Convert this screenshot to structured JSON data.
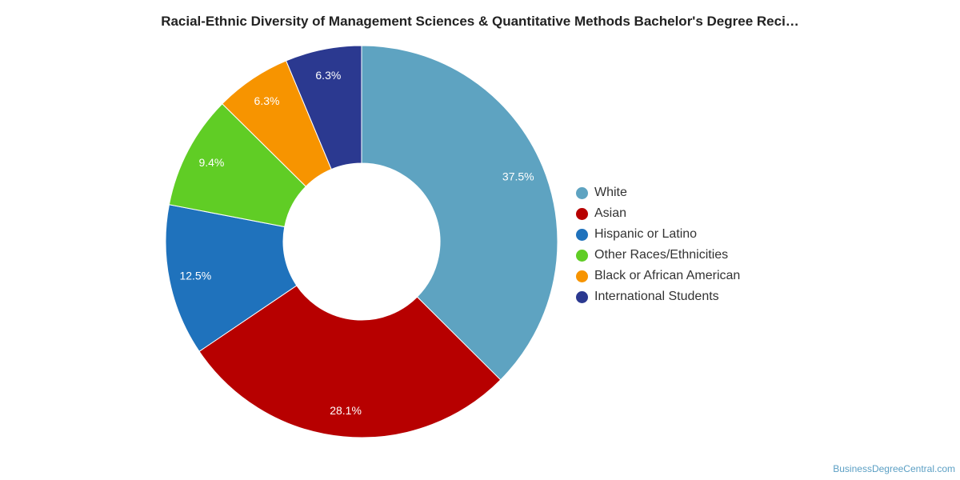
{
  "chart_data": {
    "type": "pie",
    "title": "Racial-Ethnic Diversity of Management Sciences & Quantitative Methods Bachelor's Degree Reci…",
    "donut": true,
    "categories": [
      "White",
      "Asian",
      "Hispanic or Latino",
      "Other Races/Ethnicities",
      "Black or African American",
      "International Students"
    ],
    "values": [
      37.5,
      28.1,
      12.5,
      9.4,
      6.3,
      6.3
    ],
    "labels": [
      "37.5%",
      "28.1%",
      "12.5%",
      "9.4%",
      "6.3%",
      "6.3%"
    ],
    "colors": [
      "#5ea3c1",
      "#b70000",
      "#1f72bc",
      "#60cd25",
      "#f79400",
      "#2b3990"
    ],
    "legend_position": "right"
  },
  "credit": "BusinessDegreeCentral.com"
}
